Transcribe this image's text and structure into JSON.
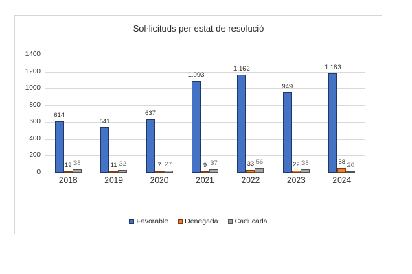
{
  "chart_data": {
    "type": "bar",
    "title": "Sol·licituds per estat de resolució",
    "categories": [
      "2018",
      "2019",
      "2020",
      "2021",
      "2022",
      "2023",
      "2024"
    ],
    "series": [
      {
        "name": "Favorable",
        "color": "#4472C4",
        "border_color": "#1f3864",
        "label_color": "#303030",
        "values": [
          614,
          541,
          637,
          1093,
          1162,
          949,
          1183
        ],
        "labels": [
          "614",
          "541",
          "637",
          "1.093",
          "1.162",
          "949",
          "1.183"
        ]
      },
      {
        "name": "Denegada",
        "color": "#ED7D31",
        "border_color": "#843c0c",
        "label_color": "#303030",
        "values": [
          19,
          11,
          7,
          9,
          33,
          22,
          58
        ],
        "labels": [
          "19",
          "11",
          "7",
          "9",
          "33",
          "22",
          "58"
        ]
      },
      {
        "name": "Caducada",
        "color": "#A5A5A5",
        "border_color": "#525252",
        "label_color": "#6e6e6e",
        "values": [
          38,
          32,
          27,
          37,
          56,
          38,
          20
        ],
        "labels": [
          "38",
          "32",
          "27",
          "37",
          "56",
          "38",
          "20"
        ]
      }
    ],
    "xlabel": "",
    "ylabel": "",
    "ylim": [
      0,
      1400
    ],
    "yticks": [
      0,
      200,
      400,
      600,
      800,
      1000,
      1200,
      1400
    ],
    "grid": true,
    "legend_position": "bottom"
  }
}
